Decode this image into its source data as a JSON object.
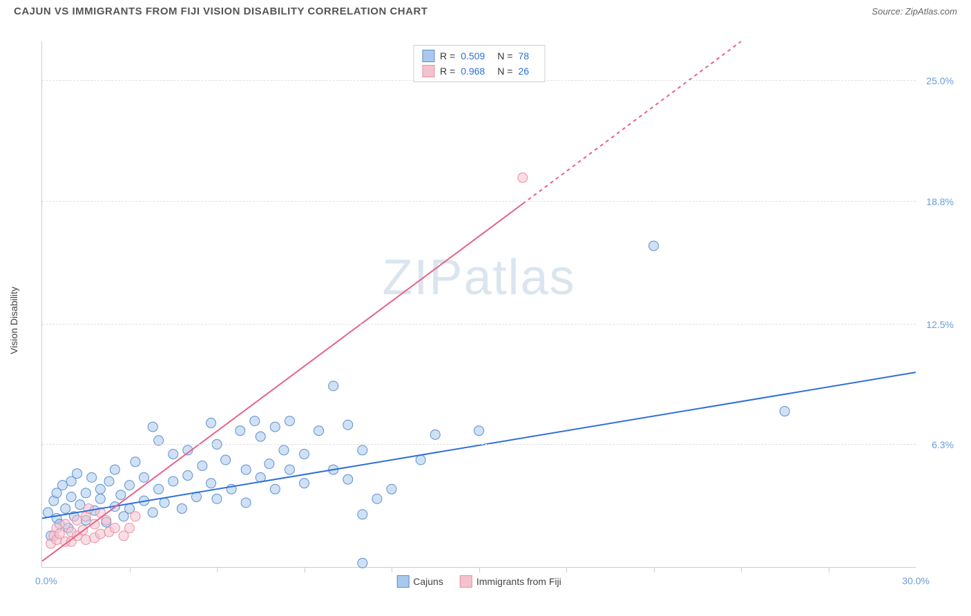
{
  "title": "CAJUN VS IMMIGRANTS FROM FIJI VISION DISABILITY CORRELATION CHART",
  "source_label": "Source:",
  "source_name": "ZipAtlas.com",
  "watermark_a": "ZIP",
  "watermark_b": "atlas",
  "y_axis_title": "Vision Disability",
  "chart": {
    "type": "scatter",
    "xlim": [
      0,
      30
    ],
    "ylim": [
      0,
      27
    ],
    "x_tick_positions": [
      3.0,
      6.0,
      9.0,
      12.0,
      15.0,
      18.0,
      21.0,
      24.0,
      27.0
    ],
    "x_label_min": "0.0%",
    "x_label_max": "30.0%",
    "y_ticks": [
      {
        "v": 6.3,
        "label": "6.3%"
      },
      {
        "v": 12.5,
        "label": "12.5%"
      },
      {
        "v": 18.8,
        "label": "18.8%"
      },
      {
        "v": 25.0,
        "label": "25.0%"
      }
    ],
    "background_color": "#ffffff",
    "grid_color": "#e0e0e0",
    "marker_radius": 7,
    "marker_opacity": 0.55,
    "line_width": 2
  },
  "series": [
    {
      "name": "Cajuns",
      "fill": "#a9c8ec",
      "stroke": "#5a8fce",
      "line_color": "#2e6fd8",
      "r_value": "0.509",
      "n_value": "78",
      "trend": {
        "x1": 0,
        "y1": 2.5,
        "x2": 30,
        "y2": 10.0,
        "dash_from_x": null
      },
      "points": [
        [
          0.2,
          2.8
        ],
        [
          0.3,
          1.6
        ],
        [
          0.4,
          3.4
        ],
        [
          0.5,
          2.5
        ],
        [
          0.5,
          3.8
        ],
        [
          0.6,
          2.2
        ],
        [
          0.7,
          4.2
        ],
        [
          0.8,
          3.0
        ],
        [
          0.9,
          2.0
        ],
        [
          1.0,
          3.6
        ],
        [
          1.0,
          4.4
        ],
        [
          1.1,
          2.6
        ],
        [
          1.2,
          4.8
        ],
        [
          1.3,
          3.2
        ],
        [
          1.5,
          2.4
        ],
        [
          1.5,
          3.8
        ],
        [
          1.7,
          4.6
        ],
        [
          1.8,
          2.9
        ],
        [
          2.0,
          3.5
        ],
        [
          2.0,
          4.0
        ],
        [
          2.2,
          2.3
        ],
        [
          2.3,
          4.4
        ],
        [
          2.5,
          3.1
        ],
        [
          2.5,
          5.0
        ],
        [
          2.7,
          3.7
        ],
        [
          2.8,
          2.6
        ],
        [
          3.0,
          4.2
        ],
        [
          3.0,
          3.0
        ],
        [
          3.2,
          5.4
        ],
        [
          3.5,
          3.4
        ],
        [
          3.5,
          4.6
        ],
        [
          3.8,
          2.8
        ],
        [
          3.8,
          7.2
        ],
        [
          4.0,
          4.0
        ],
        [
          4.0,
          6.5
        ],
        [
          4.2,
          3.3
        ],
        [
          4.5,
          5.8
        ],
        [
          4.5,
          4.4
        ],
        [
          4.8,
          3.0
        ],
        [
          5.0,
          6.0
        ],
        [
          5.0,
          4.7
        ],
        [
          5.3,
          3.6
        ],
        [
          5.5,
          5.2
        ],
        [
          5.8,
          4.3
        ],
        [
          5.8,
          7.4
        ],
        [
          6.0,
          3.5
        ],
        [
          6.0,
          6.3
        ],
        [
          6.3,
          5.5
        ],
        [
          6.5,
          4.0
        ],
        [
          6.8,
          7.0
        ],
        [
          7.0,
          5.0
        ],
        [
          7.0,
          3.3
        ],
        [
          7.3,
          7.5
        ],
        [
          7.5,
          4.6
        ],
        [
          7.5,
          6.7
        ],
        [
          7.8,
          5.3
        ],
        [
          8.0,
          7.2
        ],
        [
          8.0,
          4.0
        ],
        [
          8.3,
          6.0
        ],
        [
          8.5,
          5.0
        ],
        [
          8.5,
          7.5
        ],
        [
          9.0,
          5.8
        ],
        [
          9.0,
          4.3
        ],
        [
          9.5,
          7.0
        ],
        [
          10.0,
          9.3
        ],
        [
          10.0,
          5.0
        ],
        [
          10.5,
          4.5
        ],
        [
          10.5,
          7.3
        ],
        [
          11.0,
          2.7
        ],
        [
          11.0,
          6.0
        ],
        [
          11.0,
          0.2
        ],
        [
          11.5,
          3.5
        ],
        [
          12.0,
          4.0
        ],
        [
          13.0,
          5.5
        ],
        [
          13.5,
          6.8
        ],
        [
          15.0,
          7.0
        ],
        [
          21.0,
          16.5
        ],
        [
          25.5,
          8.0
        ]
      ]
    },
    {
      "name": "Immigrants from Fiji",
      "fill": "#f4c2cd",
      "stroke": "#e98fa3",
      "line_color": "#e96088",
      "r_value": "0.968",
      "n_value": "26",
      "trend": {
        "x1": 0,
        "y1": 0.3,
        "x2": 24,
        "y2": 27,
        "dash_from_x": 16.5
      },
      "points": [
        [
          0.3,
          1.2
        ],
        [
          0.4,
          1.6
        ],
        [
          0.5,
          1.4
        ],
        [
          0.5,
          2.0
        ],
        [
          0.6,
          1.7
        ],
        [
          0.8,
          1.3
        ],
        [
          0.8,
          2.2
        ],
        [
          1.0,
          1.8
        ],
        [
          1.0,
          1.3
        ],
        [
          1.2,
          2.4
        ],
        [
          1.2,
          1.6
        ],
        [
          1.4,
          1.9
        ],
        [
          1.5,
          2.6
        ],
        [
          1.5,
          1.4
        ],
        [
          1.6,
          3.0
        ],
        [
          1.8,
          2.2
        ],
        [
          1.8,
          1.5
        ],
        [
          2.0,
          2.8
        ],
        [
          2.0,
          1.7
        ],
        [
          2.2,
          2.4
        ],
        [
          2.3,
          1.8
        ],
        [
          2.5,
          2.0
        ],
        [
          2.8,
          1.6
        ],
        [
          3.0,
          2.0
        ],
        [
          3.2,
          2.6
        ],
        [
          16.5,
          20.0
        ]
      ]
    }
  ],
  "legend_top": {
    "r_label": "R =",
    "n_label": "N ="
  },
  "legend_bottom": [
    {
      "swatch_fill": "#a9c8ec",
      "swatch_stroke": "#5a8fce",
      "label": "Cajuns"
    },
    {
      "swatch_fill": "#f4c2cd",
      "swatch_stroke": "#e98fa3",
      "label": "Immigrants from Fiji"
    }
  ]
}
